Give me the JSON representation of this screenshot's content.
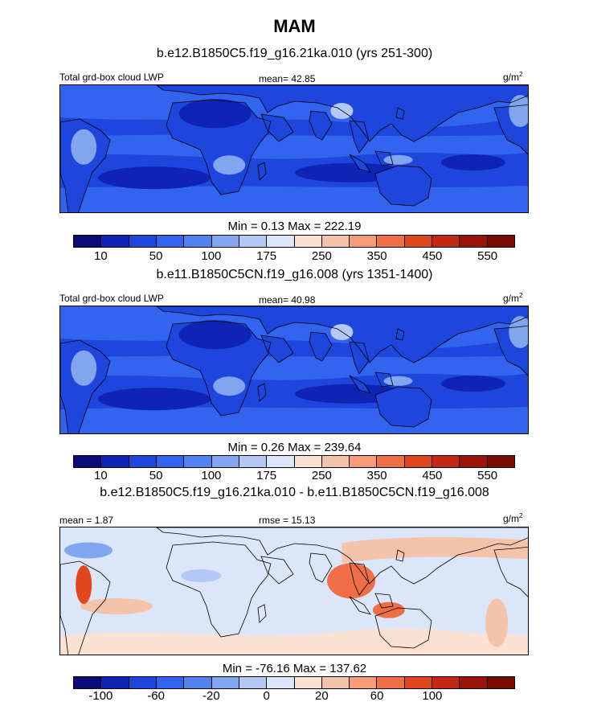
{
  "title": "MAM",
  "panels": [
    {
      "case": "b.e12.B1850C5.f19_g16.21ka.010 (yrs 251-300)",
      "left_label": "Total grd-box cloud LWP",
      "center_label": "mean=  42.85",
      "units": "g/m",
      "units_sup": "2",
      "minmax": "Min =   0.13 Max = 222.19",
      "field": "abs"
    },
    {
      "case": "b.e11.B1850C5CN.f19_g16.008 (yrs 1351-1400)",
      "left_label": "Total grd-box cloud LWP",
      "center_label": "mean=  40.98",
      "units": "g/m",
      "units_sup": "2",
      "minmax": "Min =   0.26 Max = 239.64",
      "field": "abs"
    },
    {
      "case": "b.e12.B1850C5.f19_g16.21ka.010 - b.e11.B1850C5CN.f19_g16.008",
      "left_label": "mean =   1.87",
      "center_label": "rmse =  15.13",
      "units": "g/m",
      "units_sup": "2",
      "minmax": "Min = -76.16 Max = 137.62",
      "field": "diff"
    }
  ],
  "colorbars": {
    "colors": [
      "#0a0a78",
      "#0f23b4",
      "#1e46dc",
      "#3264f0",
      "#5082f0",
      "#82a5f0",
      "#b4c8f5",
      "#dce6fa",
      "#fae1d2",
      "#f5c3aa",
      "#f59b78",
      "#f06e46",
      "#e1461e",
      "#c32814",
      "#9b140a",
      "#780a00"
    ],
    "abs_ticks": [
      "10",
      "50",
      "100",
      "175",
      "250",
      "350",
      "450",
      "550"
    ],
    "diff_ticks": [
      "-100",
      "-60",
      "-20",
      "0",
      "20",
      "60",
      "100"
    ]
  }
}
